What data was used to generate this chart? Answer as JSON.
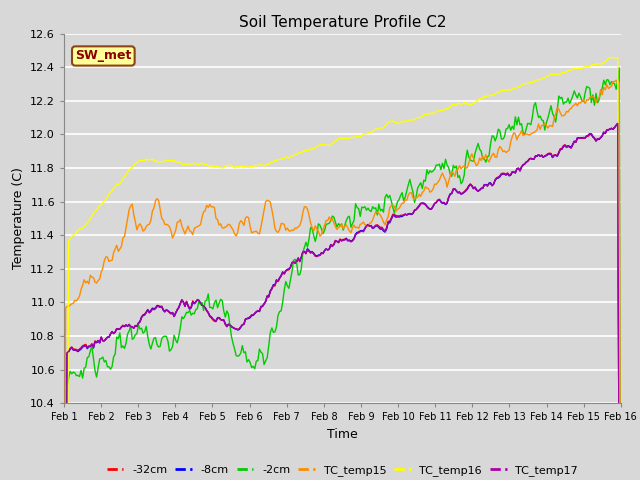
{
  "title": "Soil Temperature Profile C2",
  "xlabel": "Time",
  "ylabel": "Temperature (C)",
  "ylim": [
    10.4,
    12.6
  ],
  "xlim": [
    0,
    15
  ],
  "xtick_labels": [
    "Feb 1",
    "Feb 2",
    "Feb 3",
    "Feb 4",
    "Feb 5",
    "Feb 6",
    "Feb 7",
    "Feb 8",
    "Feb 9",
    "Feb 10",
    "Feb 11",
    "Feb 12",
    "Feb 13",
    "Feb 14",
    "Feb 15",
    "Feb 16"
  ],
  "xtick_positions": [
    0,
    1,
    2,
    3,
    4,
    5,
    6,
    7,
    8,
    9,
    10,
    11,
    12,
    13,
    14,
    15
  ],
  "ytick_labels": [
    "10.4",
    "10.6",
    "10.8",
    "11.0",
    "11.2",
    "11.4",
    "11.6",
    "11.8",
    "12.0",
    "12.2",
    "12.4",
    "12.6"
  ],
  "ytick_positions": [
    10.4,
    10.6,
    10.8,
    11.0,
    11.2,
    11.4,
    11.6,
    11.8,
    12.0,
    12.2,
    12.4,
    12.6
  ],
  "background_color": "#d8d8d8",
  "plot_bg_color": "#d8d8d8",
  "grid_color": "#ffffff",
  "series": [
    {
      "label": "-32cm",
      "color": "#ff0000"
    },
    {
      "label": "-8cm",
      "color": "#0000ff"
    },
    {
      "label": "-2cm",
      "color": "#00cc00"
    },
    {
      "label": "TC_temp15",
      "color": "#ff8c00"
    },
    {
      "label": "TC_temp16",
      "color": "#ffff00"
    },
    {
      "label": "TC_temp17",
      "color": "#aa00aa"
    }
  ],
  "annotation_text": "SW_met",
  "annotation_color": "#8b0000",
  "annotation_bg": "#ffff99",
  "annotation_border": "#8b4513"
}
